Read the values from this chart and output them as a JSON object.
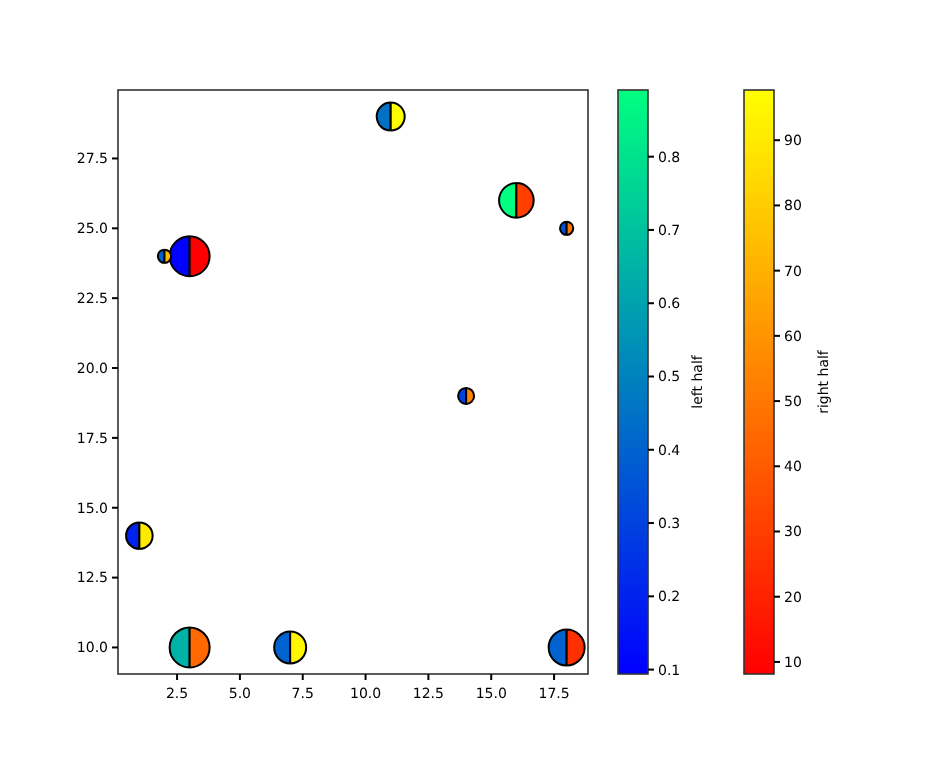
{
  "chart_data": [
    {
      "type": "bubble",
      "x": [
        1,
        2,
        3,
        3,
        7,
        11,
        14,
        16,
        18,
        18
      ],
      "values": [
        14,
        24,
        24,
        10,
        10,
        29,
        19,
        26,
        25,
        10
      ],
      "sizes": [
        0.44,
        0.11,
        1,
        1,
        0.64,
        0.49,
        0.16,
        0.75,
        0.11,
        0.81
      ],
      "cvalues": [
        0.2,
        0.4,
        0.1,
        0.65,
        0.4,
        0.45,
        0.3,
        0.89,
        0.35,
        0.4
      ],
      "clabel": "left half",
      "clim": [
        0.094,
        0.891
      ],
      "cticks": [
        0.1,
        0.2,
        0.3,
        0.4,
        0.5,
        0.6,
        0.7,
        0.8
      ],
      "xlim": [
        0.15,
        18.85
      ],
      "xticks": [
        {
          "value": 2.5,
          "label": "2.5"
        },
        {
          "value": 5,
          "label": "5.0"
        },
        {
          "value": 7.5,
          "label": "7.5"
        },
        {
          "value": 10,
          "label": "10.0"
        },
        {
          "value": 12.5,
          "label": "12.5"
        },
        {
          "value": 15,
          "label": "15.0"
        },
        {
          "value": 17.5,
          "label": "17.5"
        }
      ],
      "ylim": [
        9.05,
        29.95
      ],
      "yticks": [
        {
          "value": 10,
          "label": "10.0"
        },
        {
          "value": 12.5,
          "label": "12.5"
        },
        {
          "value": 15,
          "label": "15.0"
        },
        {
          "value": 17.5,
          "label": "17.5"
        },
        {
          "value": 20,
          "label": "20.0"
        },
        {
          "value": 22.5,
          "label": "22.5"
        },
        {
          "value": 25,
          "label": "25.0"
        },
        {
          "value": 27.5,
          "label": "27.5"
        }
      ]
    },
    {
      "type": "bubble",
      "x": [
        1,
        2,
        3,
        3,
        7,
        11,
        14,
        16,
        18,
        18
      ],
      "values": [
        14,
        24,
        24,
        10,
        10,
        29,
        19,
        26,
        25,
        10
      ],
      "sizes": [
        0.44,
        0.11,
        1,
        1,
        0.64,
        0.49,
        0.16,
        0.75,
        0.11,
        0.81
      ],
      "cvalues": [
        90,
        75,
        8.2,
        45,
        95,
        97.5,
        55,
        30,
        50,
        25
      ],
      "clabel": "right half",
      "clim": [
        8.15,
        97.7
      ],
      "cticks": [
        10,
        20,
        30,
        40,
        50,
        60,
        70,
        80,
        90
      ],
      "xlim": [
        0.15,
        18.85
      ],
      "ylim": [
        9.05,
        29.95
      ]
    }
  ]
}
